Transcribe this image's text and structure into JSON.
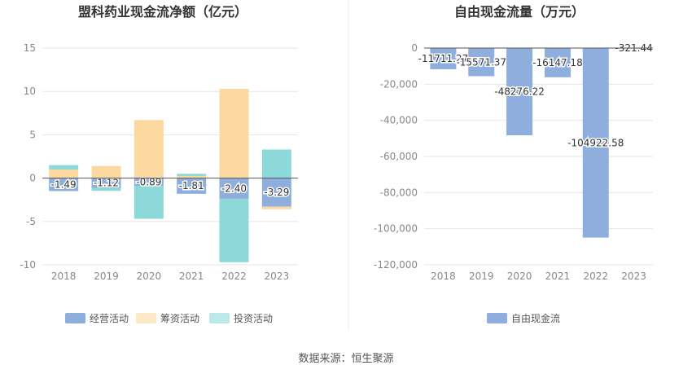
{
  "source_text": "数据来源：恒生聚源",
  "colors": {
    "operating": "#8eaedd",
    "financing": "#fcd9a0",
    "investing": "#8dd8d8",
    "fcf": "#8eaedd",
    "grid": "#e6e6e6",
    "axis": "#555555"
  },
  "chart_data": [
    {
      "type": "bar",
      "stacked": true,
      "title": "盟科药业现金流净额（亿元）",
      "categories": [
        "2018",
        "2019",
        "2020",
        "2021",
        "2022",
        "2023"
      ],
      "ylim": [
        -10,
        15
      ],
      "yticks": [
        15,
        10,
        5,
        0,
        -5,
        -10
      ],
      "series": [
        {
          "name": "经营活动",
          "values": [
            -1.49,
            -1.12,
            -0.89,
            -1.81,
            -2.4,
            -3.29
          ]
        },
        {
          "name": "筹资活动",
          "values": [
            1.0,
            1.4,
            6.7,
            0.25,
            10.3,
            -0.3
          ]
        },
        {
          "name": "投资活动",
          "values": [
            0.5,
            -0.35,
            -3.8,
            0.25,
            -7.3,
            3.3
          ]
        }
      ],
      "data_labels": [
        "-1.49",
        "-1.12",
        "-0.89",
        "-1.81",
        "-2.40",
        "-3.29"
      ],
      "legend_position": "bottom",
      "grid": true
    },
    {
      "type": "bar",
      "title": "自由现金流量（万元）",
      "categories": [
        "2018",
        "2019",
        "2020",
        "2021",
        "2022",
        "2023"
      ],
      "ylim": [
        -120000,
        0
      ],
      "yticks": [
        "0",
        "-20,000",
        "-40,000",
        "-60,000",
        "-80,000",
        "-100,000",
        "-120,000"
      ],
      "series": [
        {
          "name": "自由现金流",
          "values": [
            -11711.27,
            -15571.37,
            -48276.22,
            -16147.18,
            -104922.58,
            -321.44
          ]
        }
      ],
      "data_labels": [
        "-11711.27",
        "-15571.37",
        "-48276.22",
        "-16147.18",
        "-104922.58",
        "-321.44"
      ],
      "legend_position": "bottom",
      "grid": true
    }
  ]
}
